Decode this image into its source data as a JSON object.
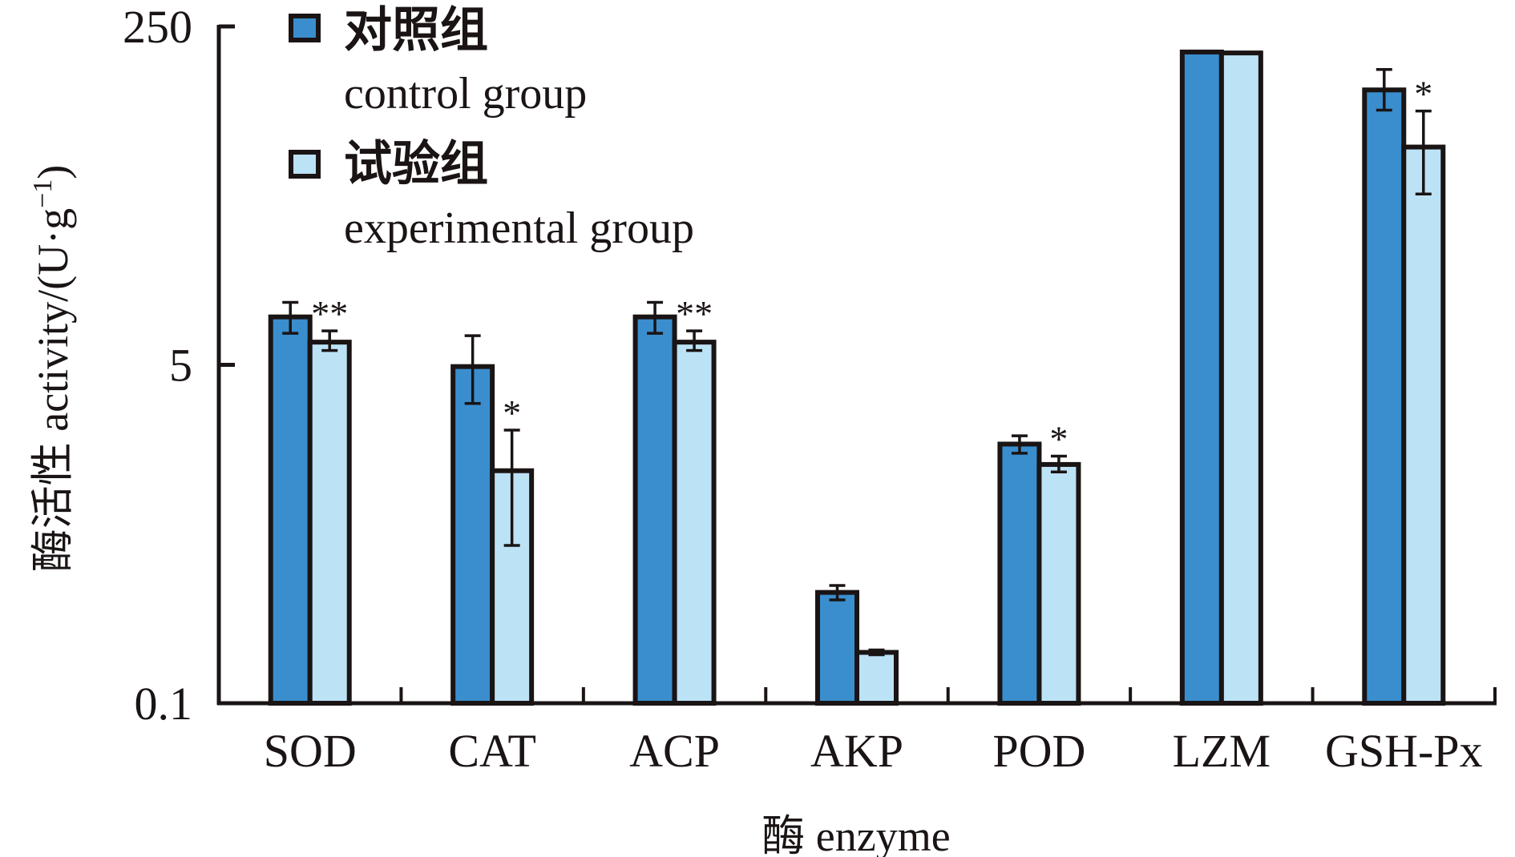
{
  "chart_data": {
    "type": "bar",
    "yscale": "log",
    "ylim": [
      0.1,
      250
    ],
    "yticks": [
      "250",
      "5",
      "0.1"
    ],
    "ytick_values": [
      250,
      5,
      0.1
    ],
    "xlabel": "酶 enzyme",
    "ylabel": "酶活性 activity/(U·g",
    "ylabel_sup": "−1",
    "ylabel_close": ")",
    "categories": [
      "SOD",
      "CAT",
      "ACP",
      "AKP",
      "POD",
      "LZM",
      "GSH-Px"
    ],
    "series": [
      {
        "name": "对照组",
        "name_en": "control group",
        "color": "#3a8ece",
        "values": [
          8.7,
          4.9,
          8.7,
          0.36,
          2.0,
          186,
          120
        ],
        "err_low": [
          7.2,
          3.2,
          7.2,
          0.33,
          1.8,
          null,
          95
        ],
        "err_high": [
          10.3,
          7.0,
          10.3,
          0.39,
          2.2,
          null,
          152
        ]
      },
      {
        "name": "试验组",
        "name_en": "experimental group",
        "color": "#bce2f6",
        "values": [
          6.5,
          1.47,
          6.5,
          0.18,
          1.58,
          184,
          62
        ],
        "err_low": [
          5.9,
          0.62,
          5.9,
          0.175,
          1.45,
          null,
          36
        ],
        "err_high": [
          7.4,
          2.35,
          7.4,
          0.185,
          1.74,
          null,
          94
        ]
      }
    ],
    "significance": [
      "**",
      "*",
      "**",
      "",
      "*",
      "",
      "*"
    ],
    "legend": {
      "placement": "top-left"
    },
    "grid": false
  }
}
